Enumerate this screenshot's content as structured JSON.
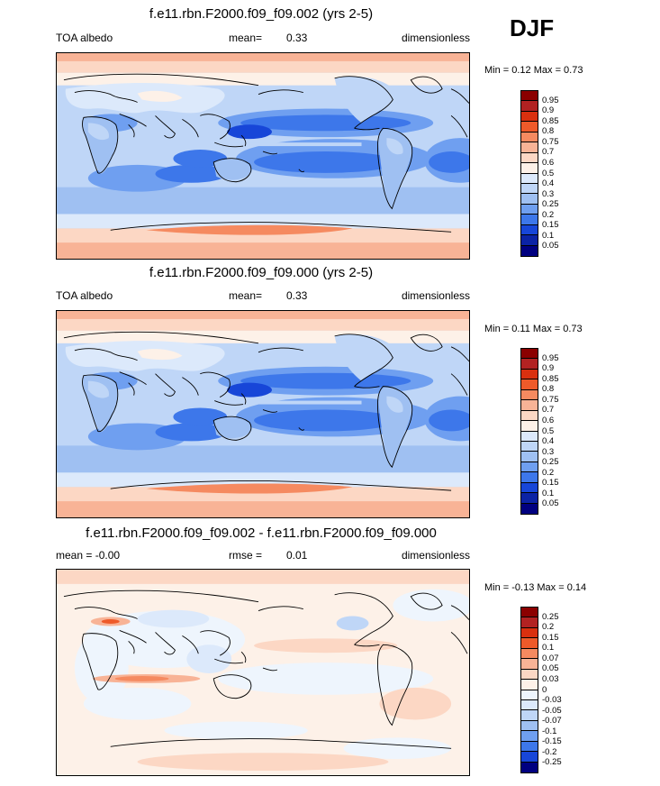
{
  "season": "DJF",
  "panels": [
    {
      "title": "f.e11.rbn.F2000.f09_f09.002 (yrs 2-5)",
      "left": "TOA albedo",
      "center_label": "mean=",
      "center_value": "0.33",
      "right": "dimensionless",
      "minmax": "Min =   0.12 Max =   0.73",
      "scale": "abs",
      "colorbar_labels": [
        "0.95",
        "0.9",
        "0.85",
        "0.8",
        "0.75",
        "0.7",
        "0.6",
        "0.5",
        "0.4",
        "0.3",
        "0.25",
        "0.2",
        "0.15",
        "0.1",
        "0.05"
      ]
    },
    {
      "title": "f.e11.rbn.F2000.f09_f09.000 (yrs 2-5)",
      "left": "TOA albedo",
      "center_label": "mean=",
      "center_value": "0.33",
      "right": "dimensionless",
      "minmax": "Min =   0.11 Max =   0.73",
      "scale": "abs",
      "colorbar_labels": [
        "0.95",
        "0.9",
        "0.85",
        "0.8",
        "0.75",
        "0.7",
        "0.6",
        "0.5",
        "0.4",
        "0.3",
        "0.25",
        "0.2",
        "0.15",
        "0.1",
        "0.05"
      ]
    },
    {
      "title": "f.e11.rbn.F2000.f09_f09.002 - f.e11.rbn.F2000.f09_f09.000",
      "left": "mean =  -0.00",
      "center_label": "rmse =",
      "center_value": "0.01",
      "right": "dimensionless",
      "minmax": "Min =  -0.13 Max =   0.14",
      "scale": "diff",
      "colorbar_labels": [
        "0.25",
        "0.2",
        "0.15",
        "0.1",
        "0.07",
        "0.05",
        "0.03",
        "0",
        "-0.03",
        "-0.05",
        "-0.07",
        "-0.1",
        "-0.15",
        "-0.2",
        "-0.25"
      ]
    }
  ],
  "colors": {
    "abs": [
      "#8b0000",
      "#b22222",
      "#d9300f",
      "#ee5a2a",
      "#f58a60",
      "#f8b396",
      "#fcd7c4",
      "#fdf1e8",
      "#dce9fb",
      "#bfd6f7",
      "#9fc0f2",
      "#6f9ff0",
      "#3d77ea",
      "#1746d8",
      "#0b23a5",
      "#000080"
    ],
    "diff": [
      "#8b0000",
      "#b22222",
      "#d9300f",
      "#ee5a2a",
      "#f58a60",
      "#f8b396",
      "#fcd7c4",
      "#fdf1e8",
      "#eef5fd",
      "#dce9fb",
      "#bfd6f7",
      "#9fc0f2",
      "#6f9ff0",
      "#3d77ea",
      "#1746d8",
      "#000080"
    ]
  }
}
